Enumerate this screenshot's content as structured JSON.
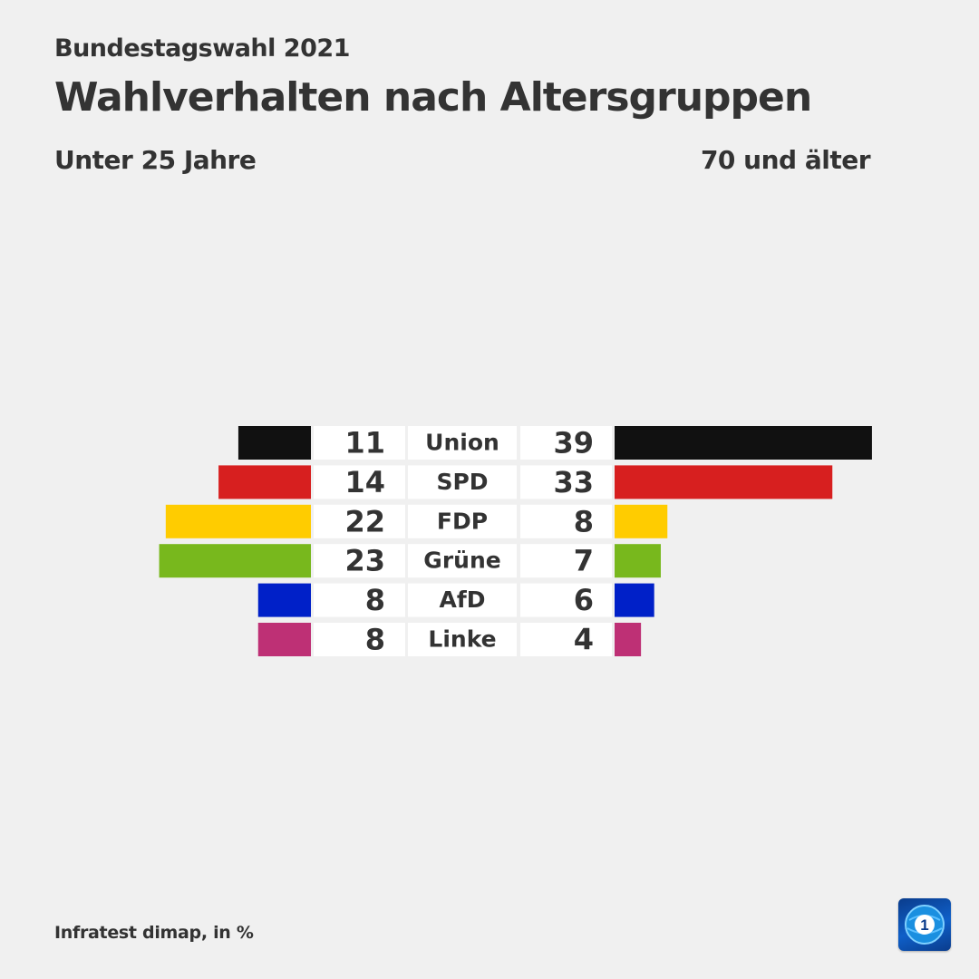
{
  "header": {
    "overline": "Bundestagswahl 2021",
    "title": "Wahlverhalten nach Altersgruppen"
  },
  "left_group_label": "Unter 25 Jahre",
  "right_group_label": "70 und älter",
  "source": "Infratest dimap, in %",
  "logo": {
    "icon": "tagesschau-globe-one-logo",
    "text": "1"
  },
  "chart_data": {
    "type": "bar",
    "orientation": "diverging-horizontal",
    "title": "Wahlverhalten nach Altersgruppen",
    "categories": [
      "Union",
      "SPD",
      "FDP",
      "Grüne",
      "AfD",
      "Linke"
    ],
    "colors": [
      "#111111",
      "#d71f1f",
      "#ffcc00",
      "#78b81d",
      "#0020c8",
      "#be3075"
    ],
    "series": [
      {
        "name": "Unter 25 Jahre",
        "values": [
          11,
          14,
          22,
          23,
          8,
          8
        ]
      },
      {
        "name": "70 und älter",
        "values": [
          39,
          33,
          8,
          7,
          6,
          4
        ]
      }
    ],
    "unit": "%"
  }
}
